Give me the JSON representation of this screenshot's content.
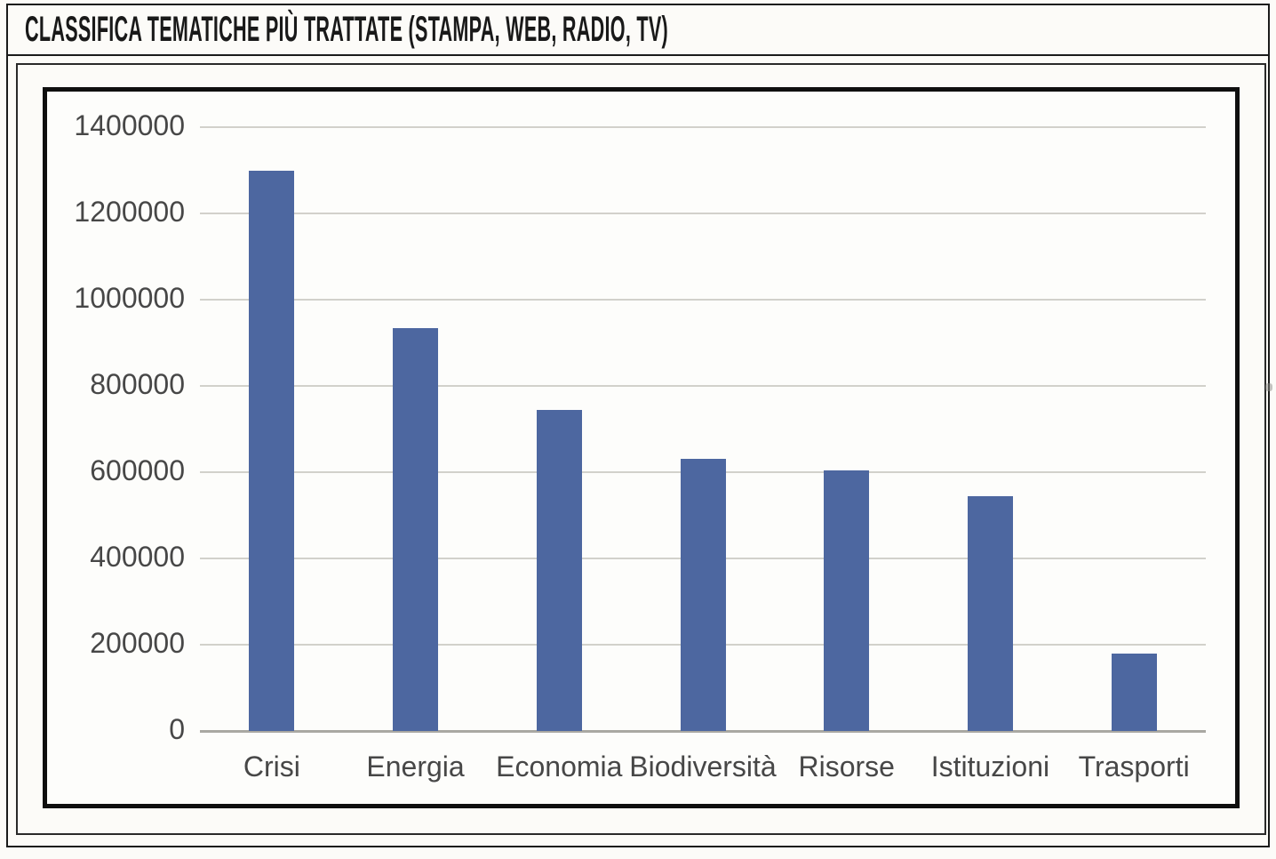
{
  "header": {
    "title": "CLASSIFICA TEMATICHE PIÙ TRATTATE (STAMPA, WEB, RADIO, TV)"
  },
  "chart_data": {
    "type": "bar",
    "title": "CLASSIFICA TEMATICHE PIÙ TRATTATE (STAMPA, WEB, RADIO, TV)",
    "categories": [
      "Crisi",
      "Energia",
      "Economia",
      "Biodiversità",
      "Risorse",
      "Istituzioni",
      "Trasporti"
    ],
    "values": [
      1300000,
      935000,
      745000,
      630000,
      605000,
      545000,
      180000
    ],
    "y_ticks": [
      0,
      200000,
      400000,
      600000,
      800000,
      1000000,
      1200000,
      1400000
    ],
    "ylim": [
      0,
      1400000
    ],
    "xlabel": "",
    "ylabel": "",
    "grid": "horizontal gridlines on, at every 200000",
    "legend": "none",
    "bar_color": "#4d67a0",
    "gridline_color": "#d2d1cb",
    "baseline_color": "#a9a8a2",
    "axis_text_color": "#474747",
    "frame_color": "#0f0f0f"
  }
}
